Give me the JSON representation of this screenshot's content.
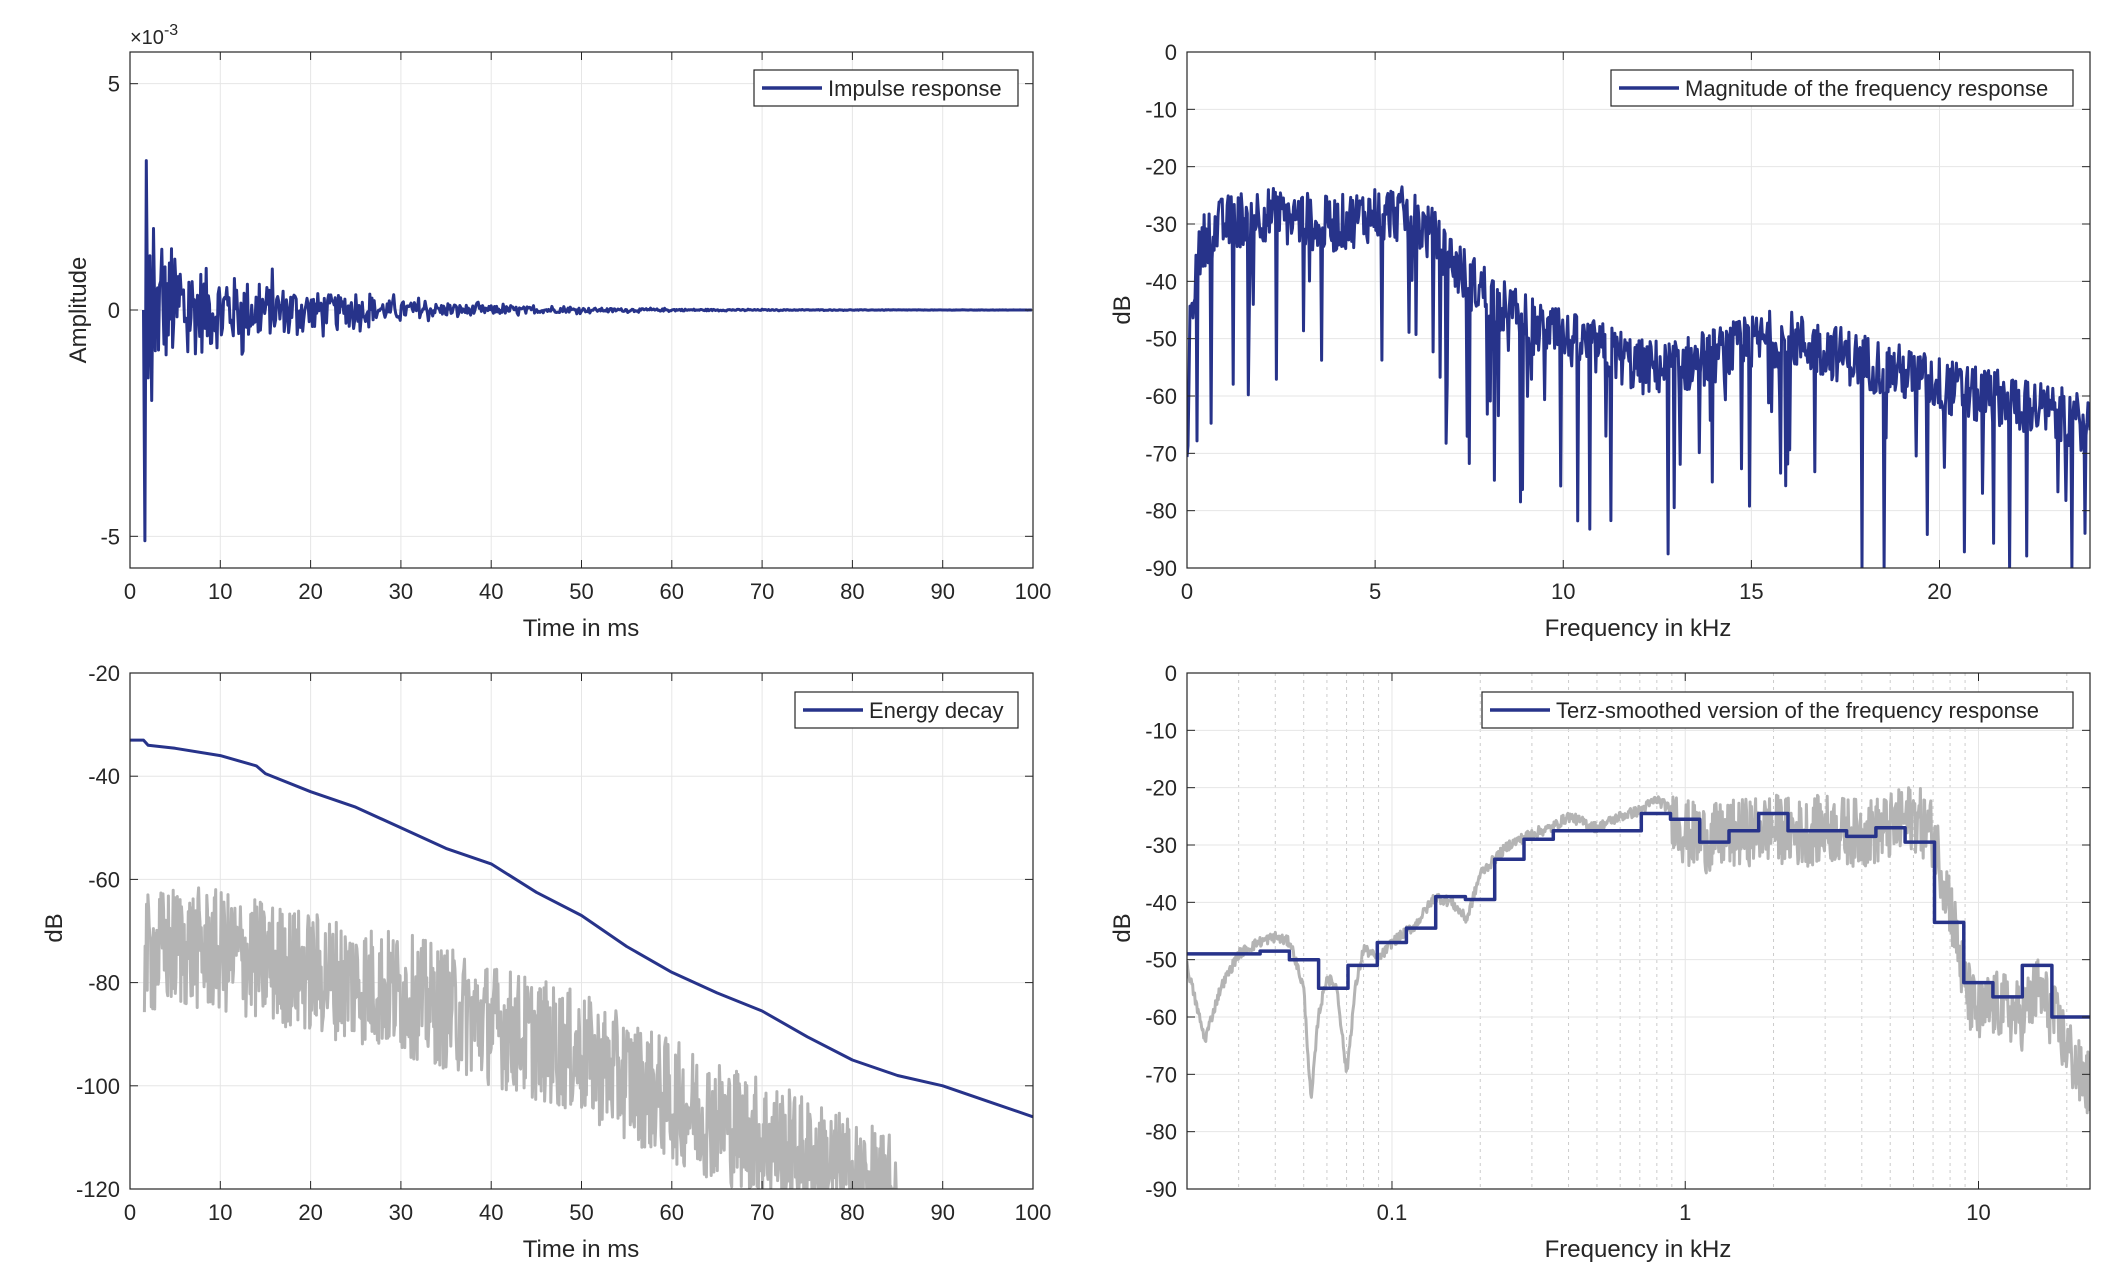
{
  "colors": {
    "series": "#27338a",
    "gray": "#b4b4b4",
    "grid": "#e6e6e6",
    "axis": "#262626"
  },
  "chart_data": [
    {
      "id": "impulse",
      "type": "line",
      "xlabel": "Time in ms",
      "ylabel": "Amplitude",
      "xlim": [
        0,
        100
      ],
      "ylim": [
        -5.7,
        5.7
      ],
      "xticks": [
        0,
        10,
        20,
        30,
        40,
        50,
        60,
        70,
        80,
        90,
        100
      ],
      "yticks": [
        -5,
        0,
        5
      ],
      "ytick_labels": [
        "-5",
        "0",
        "5"
      ],
      "y_exponent": "×10",
      "y_exponent_power": "-3",
      "grid": true,
      "legend": {
        "position": "top-right",
        "label": "Impulse response"
      },
      "series": [
        {
          "name": "Impulse response",
          "color": "series",
          "style": "line",
          "x": [
            1.5,
            1.65,
            1.8,
            2.0,
            2.2,
            2.4,
            2.6,
            2.8
          ],
          "y": [
            0,
            -5.1,
            3.3,
            -1.5,
            1.2,
            -2.0,
            1.8,
            -0.9
          ],
          "envelope": {
            "t_start": 1.7,
            "a0": 2.0,
            "decay_ms": 14,
            "t_end": 100
          }
        }
      ]
    },
    {
      "id": "magnitude",
      "type": "line",
      "xlabel": "Frequency in kHz",
      "ylabel": "dB",
      "xlim": [
        0,
        24
      ],
      "ylim": [
        -90,
        0
      ],
      "xticks": [
        0,
        5,
        10,
        15,
        20
      ],
      "yticks": [
        0,
        -10,
        -20,
        -30,
        -40,
        -50,
        -60,
        -70,
        -80,
        -90
      ],
      "grid": true,
      "legend": {
        "position": "top-right",
        "label": "Magnitude of the frequency response"
      },
      "series": [
        {
          "name": "Magnitude of the frequency response",
          "color": "series",
          "style": "line",
          "x": [
            0,
            0.05,
            0.1,
            0.2,
            0.35,
            0.5,
            1,
            1.5,
            2,
            2.5,
            3,
            3.5,
            4,
            4.5,
            5,
            5.5,
            6,
            6.5,
            7,
            7.5,
            8,
            8.5,
            9,
            9.5,
            10,
            10.5,
            11,
            11.5,
            12,
            12.5,
            13,
            13.5,
            14,
            14.5,
            15,
            15.5,
            16,
            16.5,
            17,
            17.5,
            18,
            18.5,
            19,
            19.5,
            20,
            20.5,
            21,
            21.5,
            22,
            22.5,
            23,
            23.5,
            24
          ],
          "y": [
            -75,
            -55,
            -45,
            -40,
            -35,
            -32,
            -30,
            -29,
            -28,
            -29,
            -29,
            -30,
            -30,
            -29,
            -28,
            -28,
            -29,
            -32,
            -36,
            -40,
            -42,
            -45,
            -47,
            -49,
            -50,
            -51,
            -52,
            -53,
            -55,
            -55,
            -55,
            -54,
            -53,
            -52,
            -51,
            -50,
            -50,
            -51,
            -52,
            -53,
            -54,
            -55,
            -56,
            -57,
            -58,
            -59,
            -60,
            -60,
            -61,
            -62,
            -63,
            -64,
            -65
          ],
          "noise": 5,
          "dips": 0.09,
          "samples": 900
        }
      ]
    },
    {
      "id": "energy",
      "type": "line",
      "xlabel": "Time in ms",
      "ylabel": "dB",
      "xlim": [
        0,
        100
      ],
      "ylim": [
        -120,
        -20
      ],
      "xticks": [
        0,
        10,
        20,
        30,
        40,
        50,
        60,
        70,
        80,
        90,
        100
      ],
      "yticks": [
        -20,
        -40,
        -60,
        -80,
        -100,
        -120
      ],
      "grid": true,
      "legend": {
        "position": "top-right",
        "label": "Energy decay"
      },
      "series": [
        {
          "name": "Energy decay",
          "color": "series",
          "style": "line",
          "x": [
            0,
            1.5,
            2,
            5,
            10,
            14,
            15,
            20,
            25,
            30,
            35,
            40,
            45,
            50,
            55,
            60,
            65,
            70,
            75,
            80,
            85,
            90,
            95,
            100
          ],
          "y": [
            -33,
            -33,
            -34,
            -34.6,
            -36,
            -38,
            -39.5,
            -43,
            -46,
            -50,
            -54,
            -57,
            -62.5,
            -67,
            -73,
            -78,
            -82,
            -85.5,
            -90.5,
            -95,
            -98,
            -100,
            -103,
            -106
          ]
        },
        {
          "color": "gray",
          "style": "line",
          "x": [
            1.6,
            5,
            10,
            20,
            30,
            40,
            50,
            60,
            70,
            80,
            85
          ],
          "y": [
            -75,
            -73,
            -74,
            -78,
            -82,
            -88,
            -94,
            -103,
            -110,
            -118,
            -122
          ],
          "noise": 12,
          "samples": 1100
        }
      ]
    },
    {
      "id": "terz",
      "type": "line",
      "xlabel": "Frequency in kHz",
      "ylabel": "dB",
      "xscale": "log",
      "xlim": [
        0.02,
        24
      ],
      "ylim": [
        -90,
        0
      ],
      "xticks": [
        0.1,
        1,
        10
      ],
      "xtick_labels": [
        "0.1",
        "1",
        "10"
      ],
      "yticks": [
        0,
        -10,
        -20,
        -30,
        -40,
        -50,
        -60,
        -70,
        -80,
        -90
      ],
      "grid": true,
      "legend": {
        "position": "top-right",
        "label": "Terz-smoothed version of the frequency response"
      },
      "series": [
        {
          "color": "gray",
          "style": "line",
          "x": [
            0.02,
            0.023,
            0.026,
            0.03,
            0.035,
            0.04,
            0.045,
            0.05,
            0.053,
            0.056,
            0.06,
            0.065,
            0.07,
            0.075,
            0.08,
            0.09,
            0.1,
            0.12,
            0.14,
            0.16,
            0.18,
            0.2,
            0.25,
            0.3,
            0.35,
            0.4,
            0.5,
            0.6,
            0.7,
            0.8,
            0.9,
            1.0,
            1.2,
            1.5,
            2,
            2.5,
            3,
            4,
            5,
            6,
            7,
            8,
            9,
            10,
            11,
            12,
            14,
            16,
            18,
            20,
            22,
            24
          ],
          "y": [
            -51,
            -64,
            -55,
            -49,
            -47,
            -46,
            -47,
            -55,
            -75,
            -60,
            -53,
            -55,
            -70,
            -55,
            -48,
            -50,
            -47,
            -44,
            -39,
            -40,
            -43,
            -35,
            -30,
            -28,
            -27,
            -25,
            -27,
            -25,
            -24,
            -22,
            -24,
            -28,
            -29,
            -28,
            -27,
            -28,
            -27,
            -28,
            -27,
            -25,
            -28,
            -40,
            -55,
            -60,
            -58,
            -58,
            -60,
            -55,
            -60,
            -65,
            -70,
            -72
          ],
          "noise_above": 0.9,
          "noise": 6,
          "samples": 1300
        },
        {
          "name": "Terz-smoothed version of the frequency response",
          "color": "series",
          "style": "step",
          "x": [
            0.02,
            0.0355,
            0.0447,
            0.0562,
            0.0708,
            0.0891,
            0.112,
            0.141,
            0.178,
            0.224,
            0.282,
            0.355,
            0.447,
            0.562,
            0.708,
            0.891,
            1.12,
            1.41,
            1.78,
            2.24,
            2.82,
            3.55,
            4.47,
            5.62,
            7.08,
            8.91,
            11.2,
            14.1,
            17.8,
            24
          ],
          "y": [
            -49,
            -48.5,
            -50,
            -55,
            -51,
            -47,
            -44.5,
            -39,
            -39.5,
            -32.5,
            -29,
            -27.5,
            -27.5,
            -27.5,
            -24.5,
            -25.5,
            -29.5,
            -27.5,
            -24.5,
            -27.5,
            -27.5,
            -28.5,
            -27,
            -29.5,
            -43.5,
            -54,
            -56.5,
            -51,
            -60,
            -60
          ]
        }
      ]
    }
  ]
}
